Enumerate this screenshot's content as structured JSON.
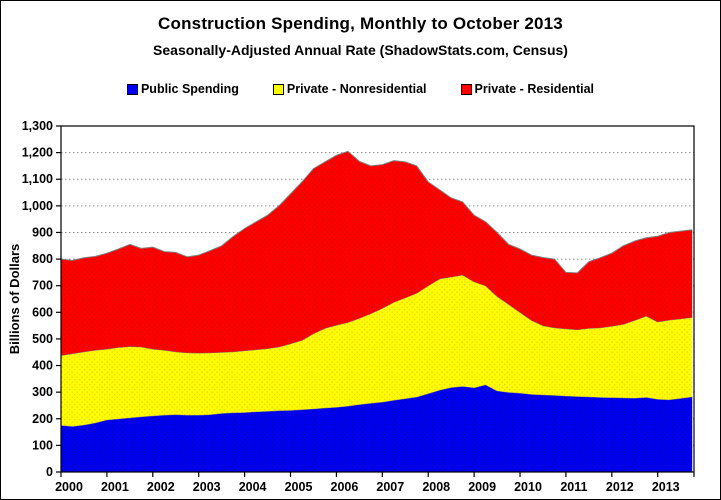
{
  "page": {
    "title": "Construction Spending, Monthly to October 2013",
    "subtitle": "Seasonally-Adjusted Annual Rate (ShadowStats.com, Census)"
  },
  "legend": [
    {
      "label": "Public Spending",
      "color": "#0000ee"
    },
    {
      "label": "Private - Nonresidential",
      "color": "#ffff00"
    },
    {
      "label": "Private - Residential",
      "color": "#ff0000"
    }
  ],
  "y_axis": {
    "title": "Billions of Dollars",
    "min": 0,
    "max": 1300,
    "step": 100,
    "tick_labels": [
      "0",
      "100",
      "200",
      "300",
      "400",
      "500",
      "600",
      "700",
      "800",
      "900",
      "1,000",
      "1,100",
      "1,200",
      "1,300"
    ]
  },
  "x_axis": {
    "tick_labels": [
      "2000",
      "2001",
      "2002",
      "2003",
      "2004",
      "2005",
      "2006",
      "2007",
      "2008",
      "2009",
      "2010",
      "2011",
      "2012",
      "2013"
    ]
  },
  "chart_data": {
    "type": "area",
    "stacked": true,
    "title": "Construction Spending, Monthly to October 2013",
    "subtitle": "Seasonally-Adjusted Annual Rate (ShadowStats.com, Census)",
    "xlabel": "",
    "ylabel": "Billions of Dollars",
    "xlim": [
      2000,
      2013.79
    ],
    "ylim": [
      0,
      1300
    ],
    "grid": true,
    "legend_position": "top",
    "x_unit": "decimal_year_quarterly_estimates",
    "x": [
      2000,
      2000.25,
      2000.5,
      2000.75,
      2001,
      2001.25,
      2001.5,
      2001.75,
      2002,
      2002.25,
      2002.5,
      2002.75,
      2003,
      2003.25,
      2003.5,
      2003.75,
      2004,
      2004.25,
      2004.5,
      2004.75,
      2005,
      2005.25,
      2005.5,
      2005.75,
      2006,
      2006.25,
      2006.5,
      2006.75,
      2007,
      2007.25,
      2007.5,
      2007.75,
      2008,
      2008.25,
      2008.5,
      2008.75,
      2009,
      2009.25,
      2009.5,
      2009.75,
      2010,
      2010.25,
      2010.5,
      2010.75,
      2011,
      2011.25,
      2011.5,
      2011.75,
      2012,
      2012.25,
      2012.5,
      2012.75,
      2013,
      2013.25,
      2013.5,
      2013.75
    ],
    "series": [
      {
        "name": "Public Spending",
        "color": "#0000ee",
        "values": [
          176,
          172,
          177,
          185,
          196,
          200,
          204,
          208,
          211,
          214,
          216,
          214,
          214,
          216,
          221,
          223,
          224,
          227,
          229,
          231,
          232,
          235,
          238,
          241,
          244,
          248,
          254,
          259,
          263,
          270,
          276,
          282,
          295,
          308,
          318,
          322,
          317,
          328,
          305,
          300,
          297,
          292,
          290,
          288,
          286,
          284,
          283,
          281,
          280,
          279,
          278,
          281,
          274,
          272,
          277,
          283
        ]
      },
      {
        "name": "Private - Nonresidential",
        "color": "#ffff00",
        "values": [
          262,
          273,
          275,
          273,
          266,
          268,
          268,
          262,
          251,
          244,
          236,
          234,
          233,
          232,
          229,
          229,
          232,
          233,
          235,
          239,
          250,
          260,
          282,
          299,
          308,
          314,
          324,
          336,
          352,
          368,
          379,
          390,
          405,
          418,
          415,
          418,
          398,
          372,
          355,
          330,
          303,
          278,
          260,
          254,
          252,
          251,
          257,
          261,
          268,
          276,
          292,
          305,
          290,
          299,
          299,
          298
        ]
      },
      {
        "name": "Private - Residential",
        "color": "#ff0000",
        "values": [
          362,
          350,
          353,
          352,
          360,
          370,
          383,
          370,
          383,
          370,
          373,
          360,
          368,
          384,
          400,
          433,
          459,
          480,
          501,
          530,
          563,
          595,
          620,
          625,
          638,
          643,
          589,
          555,
          540,
          532,
          510,
          478,
          390,
          334,
          297,
          275,
          250,
          240,
          240,
          225,
          238,
          245,
          256,
          258,
          212,
          213,
          250,
          263,
          274,
          295,
          298,
          294,
          322,
          329,
          329,
          329
        ]
      }
    ]
  }
}
